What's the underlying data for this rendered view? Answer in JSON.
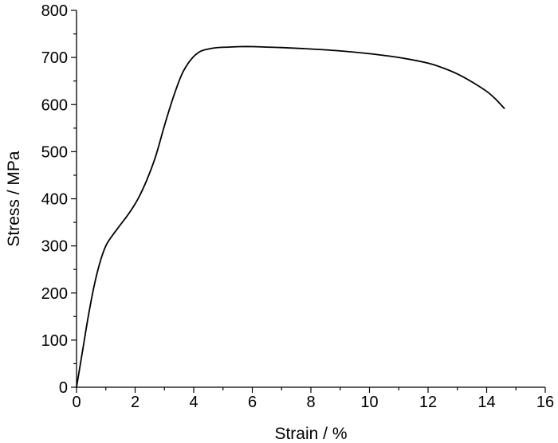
{
  "chart_data": {
    "type": "line",
    "title": "",
    "xlabel": "Strain / %",
    "ylabel": "Stress / MPa",
    "xlim": [
      0,
      16
    ],
    "ylim": [
      0,
      800
    ],
    "x_major_ticks": [
      0,
      2,
      4,
      6,
      8,
      10,
      12,
      14,
      16
    ],
    "x_tick_labels": [
      "0",
      "2",
      "4",
      "6",
      "8",
      "10",
      "12",
      "14",
      "16"
    ],
    "y_major_ticks": [
      0,
      100,
      200,
      300,
      400,
      500,
      600,
      700,
      800
    ],
    "y_tick_labels": [
      "0",
      "100",
      "200",
      "300",
      "400",
      "500",
      "600",
      "700",
      "800"
    ],
    "grid": false,
    "legend": "none",
    "series": [
      {
        "x": [
          0,
          0.2,
          0.4,
          0.6,
          0.8,
          1.0,
          1.2,
          1.5,
          1.8,
          2.1,
          2.4,
          2.7,
          3.0,
          3.3,
          3.6,
          3.9,
          4.2,
          4.5,
          4.8,
          5.2,
          5.6,
          6.0,
          6.5,
          7.0,
          8.0,
          9.0,
          10.0,
          11.0,
          12.0,
          12.5,
          13.0,
          13.5,
          14.0,
          14.3,
          14.6
        ],
        "y": [
          0,
          75,
          150,
          215,
          265,
          300,
          320,
          345,
          370,
          400,
          440,
          490,
          555,
          615,
          665,
          695,
          712,
          718,
          721,
          722,
          723,
          723,
          722,
          721,
          718,
          714,
          708,
          700,
          688,
          678,
          665,
          648,
          628,
          612,
          592
        ]
      }
    ]
  }
}
